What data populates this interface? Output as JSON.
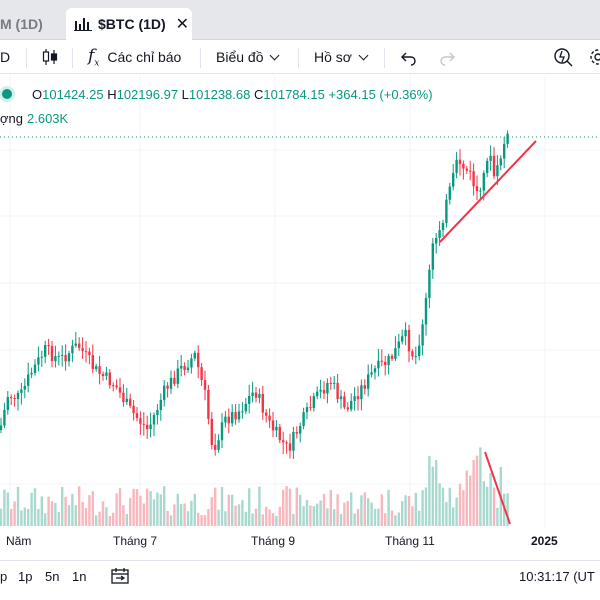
{
  "tabs": {
    "previous_label": "M (1D)",
    "active_label": "$BTC (1D)",
    "close_glyph": "✕"
  },
  "toolbar": {
    "interval_label": "D",
    "candle_icon": "candles-icon",
    "indicators_label": "Các chỉ báo",
    "indicators_icon": "fx-icon",
    "chart_type_label": "Biểu đồ",
    "profile_label": "Hồ sơ",
    "undo_icon": "undo-icon",
    "redo_icon": "redo-icon",
    "alert_icon": "alert-icon",
    "settings_icon": "gear-icon"
  },
  "legend": {
    "o_key": "O",
    "o_val": "101424.25",
    "h_key": "H",
    "h_val": "102196.97",
    "l_key": "L",
    "l_val": "101238.68",
    "c_key": "C",
    "c_val": "101784.15",
    "change": "+364.15 (+0.36%)",
    "volume_key": "ợng",
    "volume_val": "2.603K"
  },
  "time_axis": {
    "labels": [
      "Năm",
      "Tháng 7",
      "Tháng 9",
      "Tháng 11",
      "2025"
    ]
  },
  "bottom_bar": {
    "ranges": [
      "p",
      "1p",
      "5n",
      "1n"
    ],
    "calendar_icon": "calendar-range-icon",
    "clock": "10:31:17 (UT"
  },
  "colors": {
    "up": "#089981",
    "down": "#f23645",
    "vol_up": "#a8d9cf",
    "vol_down": "#f7b7bd",
    "trendline": "#f23645",
    "grid": "#f0f3fa"
  },
  "chart_data": {
    "type": "candlestick",
    "x_labels": [
      "Năm",
      "Tháng 7",
      "Tháng 9",
      "Tháng 11",
      "2025"
    ],
    "last_price": 101784.15,
    "open": 101424.25,
    "high": 102196.97,
    "low": 101238.68,
    "close": 101784.15,
    "volume": "2.603K"
  }
}
